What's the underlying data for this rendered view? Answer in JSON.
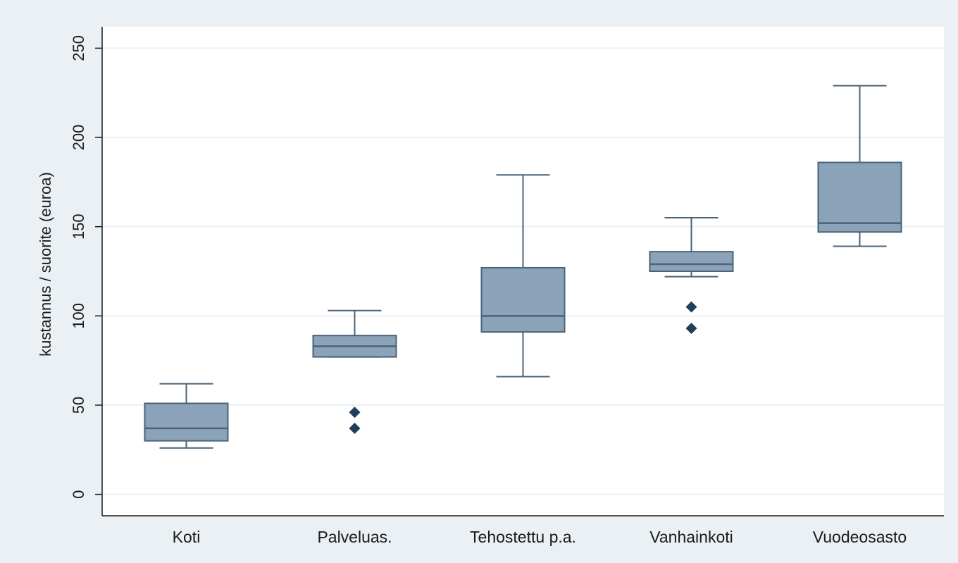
{
  "chart_data": {
    "type": "box",
    "title": "",
    "xlabel": "",
    "ylabel": "kustannus / suorite (euroa)",
    "ylim": [
      -12,
      262
    ],
    "yticks": [
      0,
      50,
      100,
      150,
      200,
      250
    ],
    "grid": true,
    "colors": {
      "background": "#eaf0f4",
      "plot_area": "#ffffff",
      "grid": "#eaf0f4",
      "box_fill": "#8aa3b8",
      "box_stroke": "#4a6378",
      "outlier": "#1f3f5c",
      "axis": "#1a1a1a"
    },
    "categories": [
      "Koti",
      "Palveluas.",
      "Tehostettu p.a.",
      "Vanhainkoti",
      "Vuodeosasto"
    ],
    "boxes": [
      {
        "category": "Koti",
        "whisker_low": 26,
        "q1": 30,
        "median": 37,
        "q3": 51,
        "whisker_high": 62,
        "outliers": []
      },
      {
        "category": "Palveluas.",
        "whisker_low": 77,
        "q1": 77,
        "median": 83,
        "q3": 89,
        "whisker_high": 103,
        "outliers": [
          46,
          37
        ]
      },
      {
        "category": "Tehostettu p.a.",
        "whisker_low": 66,
        "q1": 91,
        "median": 100,
        "q3": 127,
        "whisker_high": 179,
        "outliers": []
      },
      {
        "category": "Vanhainkoti",
        "whisker_low": 122,
        "q1": 125,
        "median": 129,
        "q3": 136,
        "whisker_high": 155,
        "outliers": [
          105,
          93
        ]
      },
      {
        "category": "Vuodeosasto",
        "whisker_low": 139,
        "q1": 147,
        "median": 152,
        "q3": 186,
        "whisker_high": 229,
        "outliers": []
      }
    ]
  }
}
